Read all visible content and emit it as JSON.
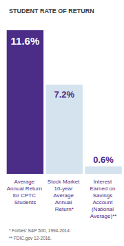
{
  "chart_data": {
    "type": "bar",
    "title": "STUDENT RATE OF RETURN",
    "categories": [
      "Average Annual Return for CPTC Students",
      "Stock Market 10-year Average Annual Return*",
      "Interest Earned on Savings Account (National Average)**"
    ],
    "values": [
      11.6,
      7.2,
      0.6
    ],
    "value_labels": [
      "11.6%",
      "7.2%",
      "0.6%"
    ],
    "colors": [
      "#4b2c87",
      "#d4e3ee",
      "#d4e3ee"
    ],
    "ylim": [
      0,
      11.6
    ],
    "data_labels": true,
    "tick_labels": "x",
    "grid": false,
    "annotations": [
      "* Forbes' S&P 500, 1994-2014.",
      "** FDIC.gov 12-2016."
    ]
  }
}
